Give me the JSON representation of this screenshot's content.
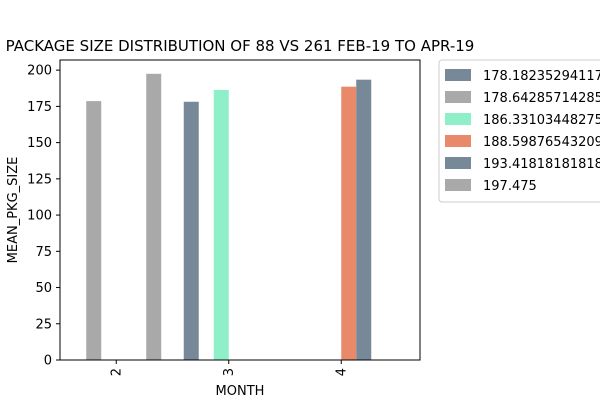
{
  "chart_data": {
    "type": "bar",
    "title": "PACKAGE SIZE DISTRIBUTION OF 88 VS 261 FEB-19 TO APR-19",
    "xlabel": "MONTH",
    "ylabel": "MEAN_PKG_SIZE",
    "categories": [
      "2",
      "3",
      "4"
    ],
    "ylim": [
      0,
      207
    ],
    "yticks": [
      0,
      25,
      50,
      75,
      100,
      125,
      150,
      175,
      200
    ],
    "grid": false,
    "legend_position": "outside-right",
    "series": [
      {
        "name": "178.18235294117",
        "color": "#778899",
        "values": [
          null,
          178.18,
          null
        ]
      },
      {
        "name": "178.64285714285",
        "color": "#a9a9a9",
        "values": [
          178.64,
          null,
          null
        ]
      },
      {
        "name": "186.33103448275",
        "color": "#8fefc8",
        "values": [
          null,
          186.33,
          null
        ]
      },
      {
        "name": "188.59876543209",
        "color": "#e8896a",
        "values": [
          null,
          null,
          188.6
        ]
      },
      {
        "name": "193.41818181818",
        "color": "#778899",
        "values": [
          null,
          null,
          193.42
        ]
      },
      {
        "name": "197.475",
        "color": "#a9a9a9",
        "values": [
          197.48,
          null,
          null
        ]
      }
    ]
  }
}
